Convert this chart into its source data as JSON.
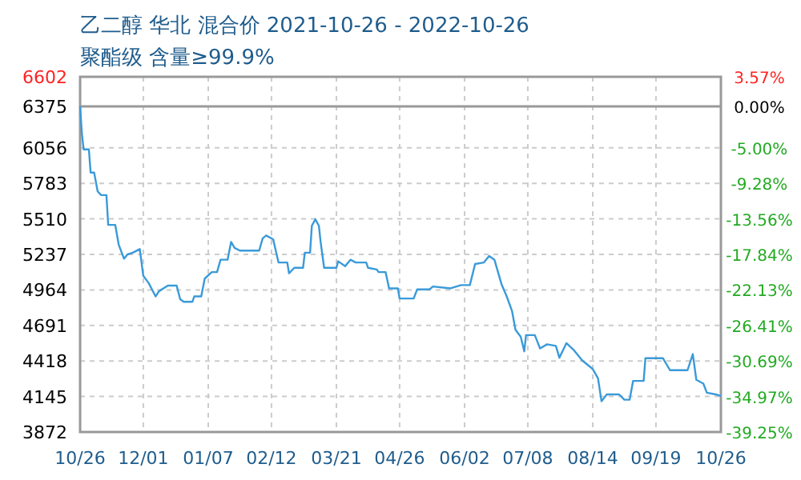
{
  "chart_data": {
    "type": "line",
    "title": "乙二醇 华北 混合价 2021-10-26 - 2022-10-26",
    "subtitle": "聚酯级 含量≥99.9%",
    "x": [
      "2021-10-26",
      "2021-10-27",
      "2021-10-28",
      "2021-10-31",
      "2021-11-01",
      "2021-11-03",
      "2021-11-05",
      "2021-11-07",
      "2021-11-10",
      "2021-11-11",
      "2021-11-15",
      "2021-11-17",
      "2021-11-20",
      "2021-11-22",
      "2021-11-25",
      "2021-11-29",
      "2021-12-01",
      "2021-12-04",
      "2021-12-08",
      "2021-12-10",
      "2021-12-15",
      "2021-12-20",
      "2021-12-22",
      "2021-12-24",
      "2021-12-29",
      "2021-12-30",
      "2022-01-03",
      "2022-01-05",
      "2022-01-09",
      "2022-01-12",
      "2022-01-14",
      "2022-01-18",
      "2022-01-20",
      "2022-01-22",
      "2022-01-25",
      "2022-02-05",
      "2022-02-07",
      "2022-02-09",
      "2022-02-13",
      "2022-02-16",
      "2022-02-21",
      "2022-02-22",
      "2022-02-25",
      "2022-03-02",
      "2022-03-03",
      "2022-03-06",
      "2022-03-07",
      "2022-03-09",
      "2022-03-11",
      "2022-03-12",
      "2022-03-14",
      "2022-03-21",
      "2022-03-22",
      "2022-03-26",
      "2022-03-29",
      "2022-04-01",
      "2022-04-07",
      "2022-04-08",
      "2022-04-13",
      "2022-04-14",
      "2022-04-18",
      "2022-04-20",
      "2022-04-25",
      "2022-04-26",
      "2022-05-04",
      "2022-05-06",
      "2022-05-13",
      "2022-05-15",
      "2022-05-25",
      "2022-05-31",
      "2022-06-05",
      "2022-06-08",
      "2022-06-13",
      "2022-06-16",
      "2022-06-19",
      "2022-06-23",
      "2022-06-26",
      "2022-06-29",
      "2022-07-01",
      "2022-07-04",
      "2022-07-06",
      "2022-07-07",
      "2022-07-12",
      "2022-07-15",
      "2022-07-19",
      "2022-07-24",
      "2022-07-26",
      "2022-07-30",
      "2022-08-03",
      "2022-08-08",
      "2022-08-14",
      "2022-08-17",
      "2022-08-19",
      "2022-08-22",
      "2022-08-29",
      "2022-09-01",
      "2022-09-04",
      "2022-09-06",
      "2022-09-12",
      "2022-09-13",
      "2022-09-23",
      "2022-09-27",
      "2022-10-07",
      "2022-10-10",
      "2022-10-12",
      "2022-10-16",
      "2022-10-18",
      "2022-10-23",
      "2022-10-26"
    ],
    "series": [
      {
        "color": "#3a9ad9",
        "values": [
          6375,
          6168,
          6044,
          6044,
          5866,
          5866,
          5721,
          5693,
          5693,
          5464,
          5464,
          5312,
          5204,
          5237,
          5250,
          5278,
          5072,
          5018,
          4914,
          4955,
          4997,
          4997,
          4893,
          4873,
          4873,
          4914,
          4914,
          5051,
          5101,
          5101,
          5196,
          5196,
          5333,
          5287,
          5266,
          5266,
          5361,
          5382,
          5352,
          5175,
          5175,
          5092,
          5134,
          5134,
          5250,
          5250,
          5457,
          5507,
          5457,
          5333,
          5134,
          5134,
          5184,
          5147,
          5196,
          5175,
          5175,
          5134,
          5121,
          5101,
          5101,
          4976,
          4976,
          4898,
          4898,
          4968,
          4968,
          4990,
          4976,
          5001,
          5001,
          5163,
          5175,
          5225,
          5196,
          5010,
          4914,
          4803,
          4658,
          4604,
          4492,
          4617,
          4617,
          4514,
          4546,
          4534,
          4443,
          4555,
          4505,
          4422,
          4356,
          4285,
          4108,
          4161,
          4161,
          4120,
          4120,
          4265,
          4265,
          4439,
          4439,
          4347,
          4347,
          4471,
          4273,
          4244,
          4174,
          4161,
          4149
        ]
      }
    ],
    "xlim": [
      "2021-10-26",
      "2022-10-26"
    ],
    "xticks": [
      {
        "value": "2021-10-26",
        "label": "10/26"
      },
      {
        "value": "2021-12-01",
        "label": "12/01"
      },
      {
        "value": "2022-01-07",
        "label": "01/07"
      },
      {
        "value": "2022-02-12",
        "label": "02/12"
      },
      {
        "value": "2022-03-21",
        "label": "03/21"
      },
      {
        "value": "2022-04-26",
        "label": "04/26"
      },
      {
        "value": "2022-06-02",
        "label": "06/02"
      },
      {
        "value": "2022-07-08",
        "label": "07/08"
      },
      {
        "value": "2022-08-14",
        "label": "08/14"
      },
      {
        "value": "2022-09-19",
        "label": "09/19"
      },
      {
        "value": "2022-10-26",
        "label": "10/26"
      }
    ],
    "ylim": [
      3872,
      6602
    ],
    "yticks": [
      3872,
      4145,
      4418,
      4691,
      4964,
      5237,
      5510,
      5783,
      6056,
      6375,
      6602
    ],
    "y2lim": [
      -39.25,
      3.57
    ],
    "y2ticks": [
      {
        "value": -39.25,
        "label": "-39.25%"
      },
      {
        "value": -34.97,
        "label": "-34.97%"
      },
      {
        "value": -30.69,
        "label": "-30.69%"
      },
      {
        "value": -26.41,
        "label": "-26.41%"
      },
      {
        "value": -22.13,
        "label": "-22.13%"
      },
      {
        "value": -17.84,
        "label": "-17.84%"
      },
      {
        "value": -13.56,
        "label": "-13.56%"
      },
      {
        "value": -9.28,
        "label": "-9.28%"
      },
      {
        "value": -5,
        "label": "-5.00%"
      },
      {
        "value": 0,
        "label": "0.00%"
      },
      {
        "value": 3.57,
        "label": "3.57%"
      }
    ],
    "ref_lines": [
      {
        "axis": "y",
        "value": 6375,
        "color": "#999999"
      }
    ],
    "grid": true,
    "marker": "none",
    "line_style": "solid"
  }
}
